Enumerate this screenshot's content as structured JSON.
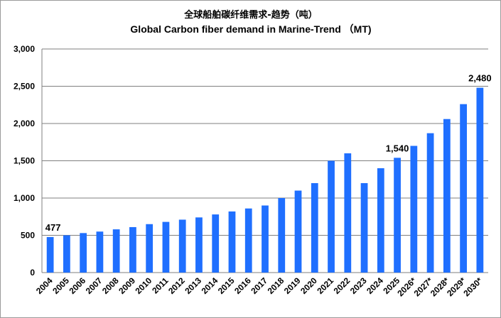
{
  "chart_data": {
    "type": "bar",
    "title": "全球船舶碳纤维需求-趋势（吨）",
    "subtitle": "Global Carbon fiber demand in Marine-Trend （MT)",
    "categories": [
      "2004",
      "2005",
      "2006",
      "2007",
      "2008",
      "2009",
      "2010",
      "2011",
      "2012",
      "2013",
      "2014",
      "2015",
      "2016",
      "2017",
      "2018",
      "2019",
      "2020",
      "2021",
      "2022",
      "2023",
      "2024",
      "2025",
      "2026*",
      "2027*",
      "2028*",
      "2029*",
      "2030*"
    ],
    "values": [
      477,
      500,
      530,
      550,
      580,
      610,
      650,
      680,
      710,
      740,
      780,
      820,
      860,
      900,
      1000,
      1100,
      1200,
      1500,
      1600,
      1200,
      1400,
      1540,
      1700,
      1870,
      2060,
      2260,
      2480
    ],
    "ylim": [
      0,
      3000
    ],
    "yticks": [
      "0",
      "500",
      "1,000",
      "1,500",
      "2,000",
      "2,500",
      "3,000"
    ],
    "grid": true,
    "bar_color": "#1f6fff",
    "data_labels": [
      {
        "index": 0,
        "text": "477"
      },
      {
        "index": 21,
        "text": "1,540"
      },
      {
        "index": 26,
        "text": "2,480"
      }
    ]
  }
}
